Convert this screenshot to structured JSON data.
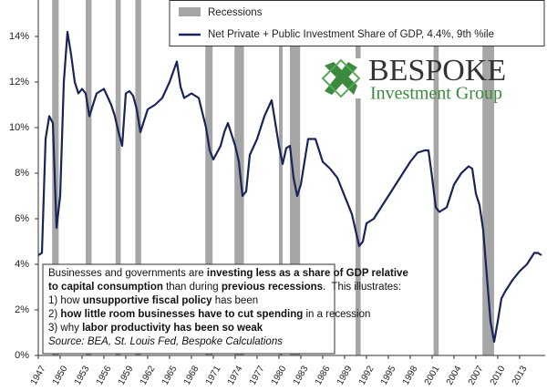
{
  "chart_data": {
    "type": "line",
    "xlim": [
      1947,
      2016.5
    ],
    "ylim": [
      0,
      15.6
    ],
    "xticks": [
      1947,
      1950,
      1953,
      1956,
      1959,
      1962,
      1965,
      1968,
      1971,
      1974,
      1977,
      1980,
      1983,
      1986,
      1989,
      1992,
      1995,
      1998,
      2001,
      2004,
      2007,
      2010,
      2013
    ],
    "yticks": [
      {
        "value": 0,
        "label": "0%"
      },
      {
        "value": 2,
        "label": "2%"
      },
      {
        "value": 4,
        "label": "4%"
      },
      {
        "value": 6,
        "label": "6%"
      },
      {
        "value": 8,
        "label": "8%"
      },
      {
        "value": 10,
        "label": "10%"
      },
      {
        "value": 12,
        "label": "12%"
      },
      {
        "value": 14,
        "label": "14%"
      }
    ],
    "recessions": {
      "name": "Recessions",
      "color": "#a6a6a6",
      "periods": [
        [
          1948.9,
          1949.8
        ],
        [
          1953.5,
          1954.3
        ],
        [
          1957.6,
          1958.3
        ],
        [
          1960.3,
          1961.1
        ],
        [
          1969.9,
          1970.9
        ],
        [
          1973.9,
          1975.2
        ],
        [
          1980.0,
          1980.5
        ],
        [
          1981.5,
          1982.9
        ],
        [
          1990.5,
          1991.2
        ],
        [
          2001.2,
          2001.9
        ],
        [
          2007.9,
          2009.5
        ]
      ]
    },
    "series": [
      {
        "name": "Net Private + Public Investment Share of GDP, 4.4%, 9th %ile",
        "color": "#1a2456",
        "x": [
          1947,
          1947.5,
          1948,
          1948.5,
          1949,
          1949.5,
          1950,
          1950.5,
          1951,
          1951.5,
          1952,
          1952.5,
          1953,
          1953.5,
          1954,
          1955,
          1956,
          1957,
          1957.5,
          1958,
          1958.5,
          1959,
          1959.5,
          1960,
          1960.5,
          1961,
          1961.5,
          1962,
          1963,
          1964,
          1965,
          1966,
          1966.5,
          1967,
          1968,
          1969,
          1970,
          1970.5,
          1971,
          1972,
          1972.5,
          1973,
          1974,
          1974.5,
          1975,
          1975.5,
          1976,
          1977,
          1978,
          1979,
          1979.5,
          1980,
          1980.5,
          1981,
          1981.5,
          1982,
          1982.5,
          1983,
          1984,
          1985,
          1986,
          1987,
          1988,
          1989,
          1990,
          1990.5,
          1991,
          1991.5,
          1992,
          1993,
          1994,
          1995,
          1996,
          1997,
          1998,
          1999,
          2000,
          2000.5,
          2001,
          2001.5,
          2002,
          2003,
          2004,
          2005,
          2006,
          2006.5,
          2007,
          2007.5,
          2008,
          2008.5,
          2009,
          2009.5,
          2010,
          2010.5,
          2011,
          2012,
          2013,
          2014,
          2015,
          2015.5,
          2016
        ],
        "values": [
          4.4,
          4.5,
          9.5,
          10.5,
          10.2,
          5.6,
          7,
          12,
          14.2,
          13.2,
          12,
          11.5,
          11.7,
          11.5,
          10.5,
          11.5,
          11.7,
          11,
          10.5,
          9.8,
          9.2,
          11.5,
          11.6,
          11.4,
          10.8,
          9.8,
          10.3,
          10.8,
          11,
          11.3,
          12,
          12.9,
          11.8,
          11.3,
          11.5,
          11.3,
          10,
          9,
          8.6,
          9.2,
          9.8,
          10.2,
          9.2,
          8.5,
          7,
          7.2,
          8.8,
          9.5,
          10.5,
          11.2,
          10.2,
          9.2,
          8.4,
          9.1,
          9.2,
          7.8,
          7,
          7.5,
          9.5,
          9.5,
          8.5,
          8.2,
          7.8,
          7,
          6.2,
          5.5,
          4.8,
          5,
          5.8,
          6,
          6.5,
          7,
          7.5,
          8,
          8.5,
          8.9,
          9,
          9,
          7.8,
          6.5,
          6.3,
          6.5,
          7.5,
          8,
          8.3,
          8.2,
          7.1,
          6.6,
          5.5,
          3.5,
          1.5,
          0.6,
          1.5,
          2.5,
          2.8,
          3.3,
          3.7,
          4,
          4.5,
          4.5,
          4.4
        ]
      }
    ],
    "annotation": {
      "lines": [
        [
          {
            "text": "Businesses and governments are ",
            "bold": false
          },
          {
            "text": "investing less as a share of GDP relative",
            "bold": true
          }
        ],
        [
          {
            "text": "to capital consumption",
            "bold": true
          },
          {
            "text": " than during ",
            "bold": false
          },
          {
            "text": "previous recessions",
            "bold": true
          },
          {
            "text": ".  This illustrates:",
            "bold": false
          }
        ],
        [
          {
            "text": "1) how ",
            "bold": false
          },
          {
            "text": "unsupportive fiscal policy",
            "bold": true
          },
          {
            "text": " has been",
            "bold": false
          }
        ],
        [
          {
            "text": "2) ",
            "bold": false
          },
          {
            "text": "how little room businesses have to cut spending",
            "bold": true
          },
          {
            "text": " in a recession",
            "bold": false
          }
        ],
        [
          {
            "text": "3) why ",
            "bold": false
          },
          {
            "text": "labor productivity has been so weak",
            "bold": true
          }
        ]
      ],
      "source": "Source: BEA, St. Louis Fed, Bespoke Calculations"
    },
    "logo": {
      "name": "BESPOKE",
      "tagline": "Investment Group"
    }
  }
}
